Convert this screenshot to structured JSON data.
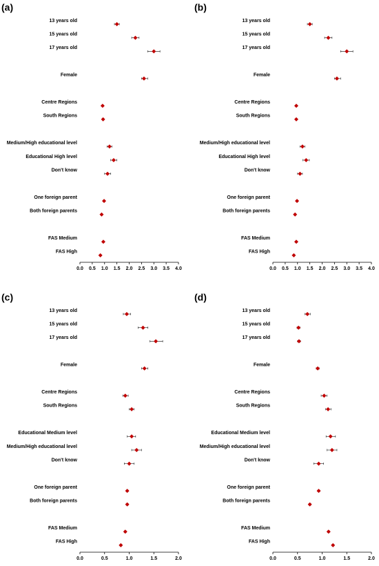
{
  "chart_data": [
    {
      "type": "forest",
      "panel_label": "(a)",
      "color": "#c00000",
      "categories": [
        "13 years old",
        "15 years old",
        "17 years old",
        null,
        "Female",
        null,
        "Centre Regions",
        "South Regions",
        null,
        "Medium/High educational level",
        "Educational High level",
        "Don't know",
        null,
        "One foreign parent",
        "Both foreign parents",
        null,
        "FAS Medium",
        "FAS High"
      ],
      "values": [
        1.5,
        2.25,
        3.0,
        null,
        2.6,
        null,
        0.92,
        0.94,
        null,
        1.2,
        1.37,
        1.12,
        null,
        0.98,
        0.88,
        null,
        0.95,
        0.83
      ],
      "lower": [
        1.4,
        2.1,
        2.75,
        null,
        2.5,
        null,
        0.89,
        0.91,
        null,
        1.1,
        1.25,
        1.0,
        null,
        0.95,
        0.85,
        null,
        0.92,
        0.8
      ],
      "upper": [
        1.6,
        2.4,
        3.25,
        null,
        2.75,
        null,
        0.95,
        0.97,
        null,
        1.3,
        1.5,
        1.25,
        null,
        1.01,
        0.91,
        null,
        0.98,
        0.86
      ],
      "xlim": [
        0,
        4
      ],
      "xticks": [
        {
          "value": 0,
          "label": "0.0"
        },
        {
          "value": 0.5,
          "label": "0.5"
        },
        {
          "value": 1,
          "label": "1.0"
        },
        {
          "value": 1.5,
          "label": "1.5"
        },
        {
          "value": 2,
          "label": "2.0"
        },
        {
          "value": 2.5,
          "label": "2.5"
        },
        {
          "value": 3,
          "label": "3.0"
        },
        {
          "value": 3.5,
          "label": "3.5"
        },
        {
          "value": 4,
          "label": "4.0"
        }
      ]
    },
    {
      "type": "forest",
      "panel_label": "(b)",
      "color": "#c00000",
      "categories": [
        "13 years old",
        "15 years old",
        "17 years old",
        null,
        "Female",
        null,
        "Centre Regions",
        "South Regions",
        null,
        "Medium/High educational level",
        "Educational High level",
        "Don't know",
        null,
        "One foreign parent",
        "Both foreign parents",
        null,
        "FAS Medium",
        "FAS High"
      ],
      "values": [
        1.5,
        2.25,
        3.0,
        null,
        2.6,
        null,
        0.95,
        0.95,
        null,
        1.2,
        1.35,
        1.1,
        null,
        0.98,
        0.9,
        null,
        0.95,
        0.85
      ],
      "lower": [
        1.4,
        2.1,
        2.75,
        null,
        2.5,
        null,
        0.92,
        0.92,
        null,
        1.1,
        1.22,
        1.0,
        null,
        0.95,
        0.87,
        null,
        0.92,
        0.82
      ],
      "upper": [
        1.6,
        2.4,
        3.25,
        null,
        2.75,
        null,
        0.98,
        0.98,
        null,
        1.3,
        1.48,
        1.2,
        null,
        1.01,
        0.93,
        null,
        0.98,
        0.88
      ],
      "xlim": [
        0,
        4
      ],
      "xticks": [
        {
          "value": 0,
          "label": "0.0"
        },
        {
          "value": 0.5,
          "label": "0.5"
        },
        {
          "value": 1,
          "label": "1.0"
        },
        {
          "value": 1.5,
          "label": "1.5"
        },
        {
          "value": 2,
          "label": "2.0"
        },
        {
          "value": 2.5,
          "label": "2.5"
        },
        {
          "value": 3,
          "label": "3.0"
        },
        {
          "value": 3.5,
          "label": "3.5"
        },
        {
          "value": 4,
          "label": "4.0"
        }
      ]
    },
    {
      "type": "forest",
      "panel_label": "(c)",
      "color": "#c00000",
      "categories": [
        "13 years old",
        "15 years old",
        "17 years old",
        null,
        "Female",
        null,
        "Centre Regions",
        "South Regions",
        null,
        "Educational Medium level",
        "Medium/High educational level",
        "Don't know",
        null,
        "One foreign parent",
        "Both foreign parents",
        null,
        "FAS Medium",
        "FAS High"
      ],
      "values": [
        0.95,
        1.28,
        1.54,
        null,
        1.31,
        null,
        0.92,
        1.05,
        null,
        1.05,
        1.15,
        1.0,
        null,
        0.96,
        0.96,
        null,
        0.92,
        0.83
      ],
      "lower": [
        0.88,
        1.18,
        1.42,
        null,
        1.25,
        null,
        0.87,
        1.0,
        null,
        0.96,
        1.05,
        0.9,
        null,
        0.94,
        0.94,
        null,
        0.9,
        0.81
      ],
      "upper": [
        1.03,
        1.38,
        1.68,
        null,
        1.38,
        null,
        0.98,
        1.1,
        null,
        1.13,
        1.25,
        1.1,
        null,
        0.98,
        0.98,
        null,
        0.94,
        0.85
      ],
      "xlim": [
        0,
        2
      ],
      "xticks": [
        {
          "value": 0,
          "label": "0.0"
        },
        {
          "value": 0.5,
          "label": "0.5"
        },
        {
          "value": 1,
          "label": "1.0"
        },
        {
          "value": 1.5,
          "label": "1.5"
        },
        {
          "value": 2,
          "label": "2.0"
        }
      ]
    },
    {
      "type": "forest",
      "panel_label": "(d)",
      "color": "#c00000",
      "categories": [
        "13 years old",
        "15 years old",
        "17 years old",
        null,
        "Female",
        null,
        "Centre Regions",
        "South Regions",
        null,
        "Educational Medium level",
        "Medium/High educational level",
        "Don't know",
        null,
        "One foreign parent",
        "Both foreign parents",
        null,
        "FAS Medium",
        "FAS High"
      ],
      "values": [
        0.7,
        0.52,
        0.53,
        null,
        0.91,
        null,
        1.04,
        1.12,
        null,
        1.17,
        1.2,
        0.93,
        null,
        0.93,
        0.75,
        null,
        1.13,
        1.22
      ],
      "lower": [
        0.65,
        0.49,
        0.5,
        null,
        0.88,
        null,
        0.98,
        1.07,
        null,
        1.08,
        1.1,
        0.83,
        null,
        0.91,
        0.73,
        null,
        1.11,
        1.2
      ],
      "upper": [
        0.76,
        0.55,
        0.56,
        null,
        0.94,
        null,
        1.1,
        1.18,
        null,
        1.27,
        1.3,
        1.03,
        null,
        0.95,
        0.77,
        null,
        1.15,
        1.24
      ],
      "xlim": [
        0,
        2
      ],
      "xticks": [
        {
          "value": 0,
          "label": "0.0"
        },
        {
          "value": 0.5,
          "label": "0.5"
        },
        {
          "value": 1,
          "label": "1.0"
        },
        {
          "value": 1.5,
          "label": "1.5"
        },
        {
          "value": 2,
          "label": "2.0"
        }
      ]
    }
  ]
}
